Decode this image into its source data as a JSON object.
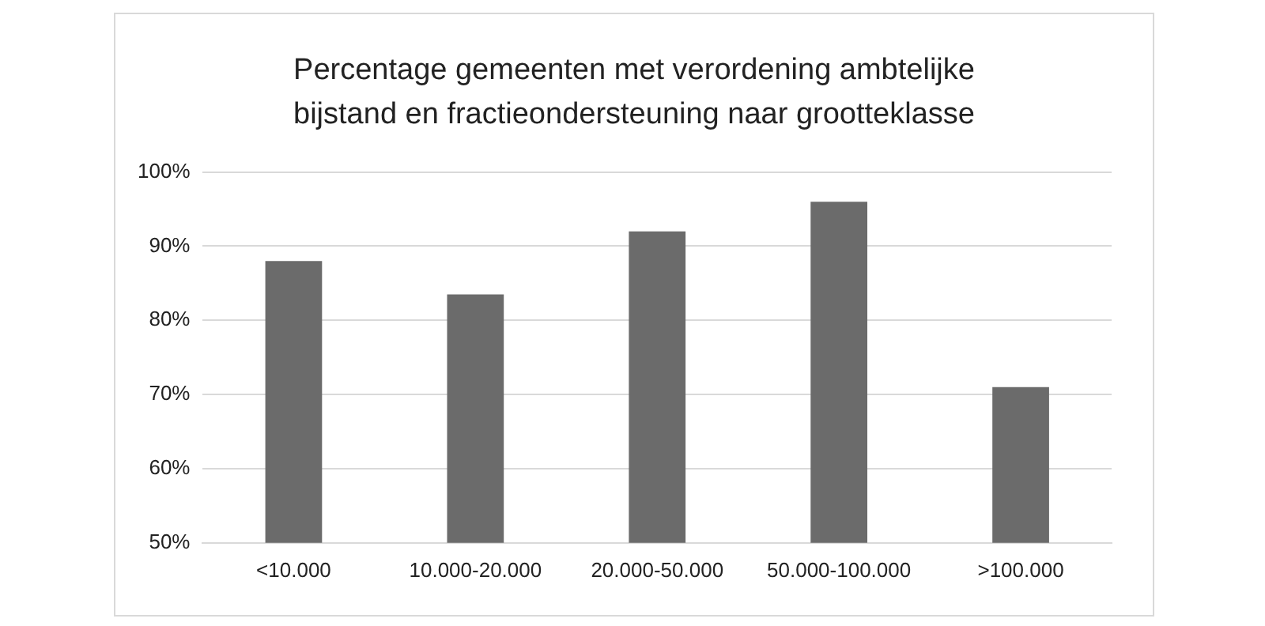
{
  "chart_data": {
    "type": "bar",
    "title": "Percentage gemeenten met verordening ambtelijke bijstand en fractieondersteuning naar grootteklasse",
    "categories": [
      "<10.000",
      "10.000-20.000",
      "20.000-50.000",
      "50.000-100.000",
      ">100.000"
    ],
    "values": [
      88,
      83.5,
      92,
      96,
      71
    ],
    "color": "#6b6b6b",
    "ylim": [
      50,
      100
    ],
    "yticks": [
      {
        "value": 50,
        "label": "50%"
      },
      {
        "value": 60,
        "label": "60%"
      },
      {
        "value": 70,
        "label": "70%"
      },
      {
        "value": 80,
        "label": "80%"
      },
      {
        "value": 90,
        "label": "90%"
      },
      {
        "value": 100,
        "label": "100%"
      }
    ],
    "grid": "y"
  }
}
